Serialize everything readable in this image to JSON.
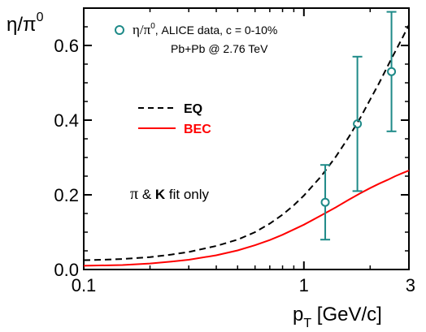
{
  "chart_data": {
    "type": "line",
    "xscale": "log",
    "xlim": [
      0.1,
      3
    ],
    "ylim": [
      0.0,
      0.7
    ],
    "x_ticks": [
      {
        "value": 0.1,
        "label": "0.1"
      },
      {
        "value": 1,
        "label": "1"
      },
      {
        "value": 3,
        "label": "3"
      }
    ],
    "y_ticks": [
      {
        "value": 0.0,
        "label": "0.0"
      },
      {
        "value": 0.2,
        "label": "0.2"
      },
      {
        "value": 0.4,
        "label": "0.4"
      },
      {
        "value": 0.6,
        "label": "0.6"
      }
    ],
    "ylabel": "η/π⁰",
    "xlabel": "p_T [GeV/c]",
    "series": [
      {
        "name": "EQ",
        "style": "dashed",
        "color": "#000000",
        "x": [
          0.1,
          0.12,
          0.15,
          0.2,
          0.25,
          0.3,
          0.4,
          0.5,
          0.6,
          0.7,
          0.8,
          0.9,
          1.0,
          1.2,
          1.4,
          1.6,
          1.8,
          2.0,
          2.2,
          2.5,
          2.8,
          3.0
        ],
        "y": [
          0.025,
          0.026,
          0.028,
          0.033,
          0.04,
          0.047,
          0.063,
          0.08,
          0.1,
          0.123,
          0.147,
          0.172,
          0.198,
          0.25,
          0.303,
          0.355,
          0.405,
          0.455,
          0.5,
          0.565,
          0.62,
          0.655
        ]
      },
      {
        "name": "BEC",
        "style": "solid",
        "color": "#ff0000",
        "x": [
          0.1,
          0.15,
          0.2,
          0.25,
          0.3,
          0.4,
          0.5,
          0.6,
          0.7,
          0.8,
          1.0,
          1.2,
          1.4,
          1.6,
          1.8,
          2.0,
          2.2,
          2.4,
          2.6,
          2.8,
          3.0
        ],
        "y": [
          0.01,
          0.012,
          0.016,
          0.021,
          0.026,
          0.038,
          0.051,
          0.065,
          0.079,
          0.093,
          0.12,
          0.145,
          0.167,
          0.187,
          0.204,
          0.218,
          0.23,
          0.24,
          0.25,
          0.258,
          0.265
        ]
      },
      {
        "name": "η/π⁰, ALICE data, c = 0-10%",
        "style": "markers",
        "color": "#1e8a88",
        "x": [
          1.25,
          1.75,
          2.5
        ],
        "y": [
          0.18,
          0.39,
          0.53
        ],
        "err_low": [
          0.1,
          0.18,
          0.16
        ],
        "err_high": [
          0.1,
          0.18,
          0.16
        ]
      }
    ],
    "legend": {
      "data_label_symbol": "η/π",
      "data_label_sup": "0",
      "data_label_text": ",  ALICE data, c = 0-10%",
      "data_label_line2": "Pb+Pb @ 2.76 TeV",
      "eq_label": "EQ",
      "bec_label": "BEC",
      "fit_pi": "π",
      "fit_amp": " & ",
      "fit_k": "K",
      "fit_rest": " fit only"
    },
    "axis_text": {
      "ylabel_main": "η/π",
      "ylabel_sup": "0",
      "xlabel_p": "p",
      "xlabel_sub": "T",
      "xlabel_rest": " [GeV/c]"
    },
    "colors": {
      "eq": "#000000",
      "bec": "#ff0000",
      "data": "#1e8a88"
    },
    "grid": false
  }
}
